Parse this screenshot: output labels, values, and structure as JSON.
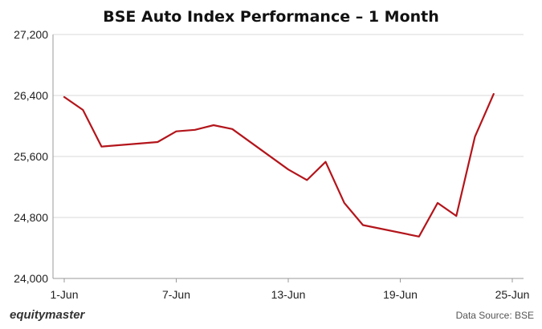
{
  "chart_data": {
    "type": "line",
    "title": "BSE Auto Index Performance – 1 Month",
    "xlabel": "",
    "ylabel": "",
    "x_tick_labels": [
      "1-Jun",
      "7-Jun",
      "13-Jun",
      "19-Jun",
      "25-Jun"
    ],
    "y_tick_labels": [
      "24,000",
      "24,800",
      "25,600",
      "26,400",
      "27,200"
    ],
    "ylim": [
      24000,
      27200
    ],
    "xlim": [
      "2021-06-01",
      "2021-06-25"
    ],
    "grid": "horizontal",
    "series": [
      {
        "color": "#b3151b",
        "points": [
          {
            "x": "2021-06-01",
            "y": 26380
          },
          {
            "x": "2021-06-02",
            "y": 26210
          },
          {
            "x": "2021-06-03",
            "y": 25730
          },
          {
            "x": "2021-06-06",
            "y": 25790
          },
          {
            "x": "2021-06-07",
            "y": 25930
          },
          {
            "x": "2021-06-08",
            "y": 25950
          },
          {
            "x": "2021-06-09",
            "y": 26010
          },
          {
            "x": "2021-06-10",
            "y": 25960
          },
          {
            "x": "2021-06-13",
            "y": 25430
          },
          {
            "x": "2021-06-14",
            "y": 25290
          },
          {
            "x": "2021-06-15",
            "y": 25530
          },
          {
            "x": "2021-06-16",
            "y": 24990
          },
          {
            "x": "2021-06-17",
            "y": 24700
          },
          {
            "x": "2021-06-20",
            "y": 24550
          },
          {
            "x": "2021-06-21",
            "y": 24990
          },
          {
            "x": "2021-06-22",
            "y": 24820
          },
          {
            "x": "2021-06-23",
            "y": 25860
          },
          {
            "x": "2021-06-24",
            "y": 26420
          }
        ]
      }
    ]
  },
  "footer": {
    "brand": "equitymaster",
    "source": "Data Source: BSE"
  },
  "colors": {
    "line": "#b3151b",
    "grid": "#d9d9d9",
    "axis": "#999999"
  }
}
